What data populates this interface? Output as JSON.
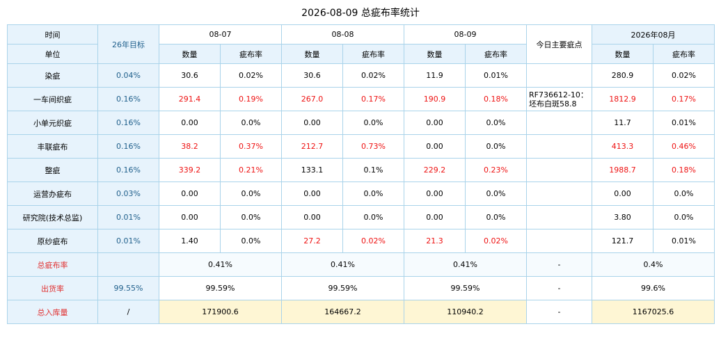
{
  "title": "2026-08-09 总疵布率统计",
  "header": {
    "time": "时间",
    "unit": "单位",
    "target": "26年目标",
    "dates": [
      "08-07",
      "08-08",
      "08-09"
    ],
    "main_defect": "今日主要疵点",
    "month": "2026年08月",
    "qty": "数量",
    "rate": "疵布率"
  },
  "rows": [
    {
      "name": "染疵",
      "target": "0.04%",
      "d1q": "30.6",
      "d1r": "0.02%",
      "d2q": "30.6",
      "d2r": "0.02%",
      "d3q": "11.9",
      "d3r": "0.01%",
      "note": "",
      "mq": "280.9",
      "mr": "0.02%"
    },
    {
      "name": "一车间织疵",
      "target": "0.16%",
      "d1q": "291.4",
      "d1r": "0.19%",
      "d2q": "267.0",
      "d2r": "0.17%",
      "d3q": "190.9",
      "d3r": "0.18%",
      "note": "RF736612-10：坯布白斑58.8",
      "mq": "1812.9",
      "mr": "0.17%"
    },
    {
      "name": "小单元织疵",
      "target": "0.16%",
      "d1q": "0.00",
      "d1r": "0.0%",
      "d2q": "0.00",
      "d2r": "0.0%",
      "d3q": "0.00",
      "d3r": "0.0%",
      "note": "",
      "mq": "11.7",
      "mr": "0.01%"
    },
    {
      "name": "丰联疵布",
      "target": "0.16%",
      "d1q": "38.2",
      "d1r": "0.37%",
      "d2q": "212.7",
      "d2r": "0.73%",
      "d3q": "0.00",
      "d3r": "0.0%",
      "note": "",
      "mq": "413.3",
      "mr": "0.46%"
    },
    {
      "name": "整疵",
      "target": "0.16%",
      "d1q": "339.2",
      "d1r": "0.21%",
      "d2q": "133.1",
      "d2r": "0.1%",
      "d3q": "229.2",
      "d3r": "0.23%",
      "note": "",
      "mq": "1988.7",
      "mr": "0.18%"
    },
    {
      "name": "运营办疵布",
      "target": "0.03%",
      "d1q": "0.00",
      "d1r": "0.0%",
      "d2q": "0.00",
      "d2r": "0.0%",
      "d3q": "0.00",
      "d3r": "0.0%",
      "note": "",
      "mq": "0.00",
      "mr": "0.0%"
    },
    {
      "name": "研究院(技术总监)",
      "target": "0.01%",
      "d1q": "0.00",
      "d1r": "0.0%",
      "d2q": "0.00",
      "d2r": "0.0%",
      "d3q": "0.00",
      "d3r": "0.0%",
      "note": "",
      "mq": "3.80",
      "mr": "0.0%"
    },
    {
      "name": "原纱疵布",
      "target": "0.01%",
      "d1q": "1.40",
      "d1r": "0.0%",
      "d2q": "27.2",
      "d2r": "0.02%",
      "d3q": "21.3",
      "d3r": "0.02%",
      "note": "",
      "mq": "121.7",
      "mr": "0.01%"
    }
  ],
  "summary": [
    {
      "name": "总疵布率",
      "target": "",
      "d1": "0.41%",
      "d2": "0.41%",
      "d3": "0.41%",
      "note": "-",
      "month": "0.4%"
    },
    {
      "name": "出货率",
      "target": "99.55%",
      "d1": "99.59%",
      "d2": "99.59%",
      "d3": "99.59%",
      "note": "-",
      "month": "99.6%"
    },
    {
      "name": "总入库量",
      "target": "/",
      "d1": "171900.6",
      "d2": "164667.2",
      "d3": "110940.2",
      "note": "-",
      "month": "1167025.6"
    }
  ],
  "colors": {
    "red": "#ee1111",
    "header_bg": "#e7f3fc",
    "border": "#a9d3ea",
    "highlight": "#fef6d4"
  }
}
